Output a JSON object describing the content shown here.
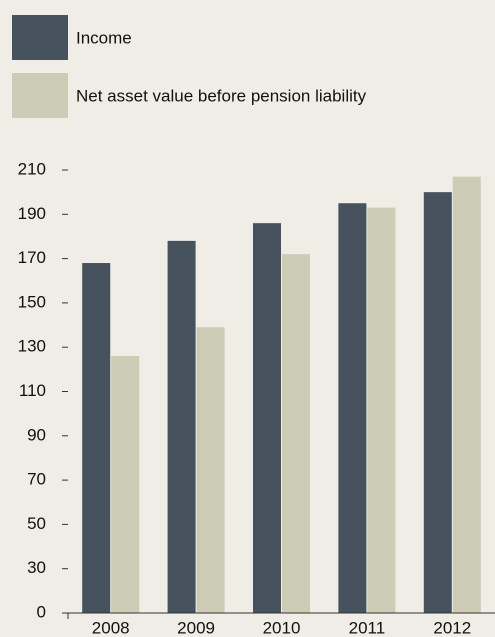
{
  "chart_data": {
    "type": "bar",
    "categories": [
      "2008",
      "2009",
      "2010",
      "2011",
      "2012"
    ],
    "series": [
      {
        "name": "Income",
        "color": "#46525e",
        "values": [
          168,
          178,
          186,
          195,
          200
        ]
      },
      {
        "name": "Net asset value before pension liability",
        "color": "#cccbb5",
        "values": [
          126,
          139,
          172,
          193,
          207
        ]
      }
    ],
    "ylim": [
      10,
      210
    ],
    "yticks": [
      {
        "value": 10,
        "label": "0"
      },
      30,
      50,
      70,
      90,
      110,
      130,
      150,
      170,
      190,
      210
    ],
    "legend": "top-left"
  }
}
